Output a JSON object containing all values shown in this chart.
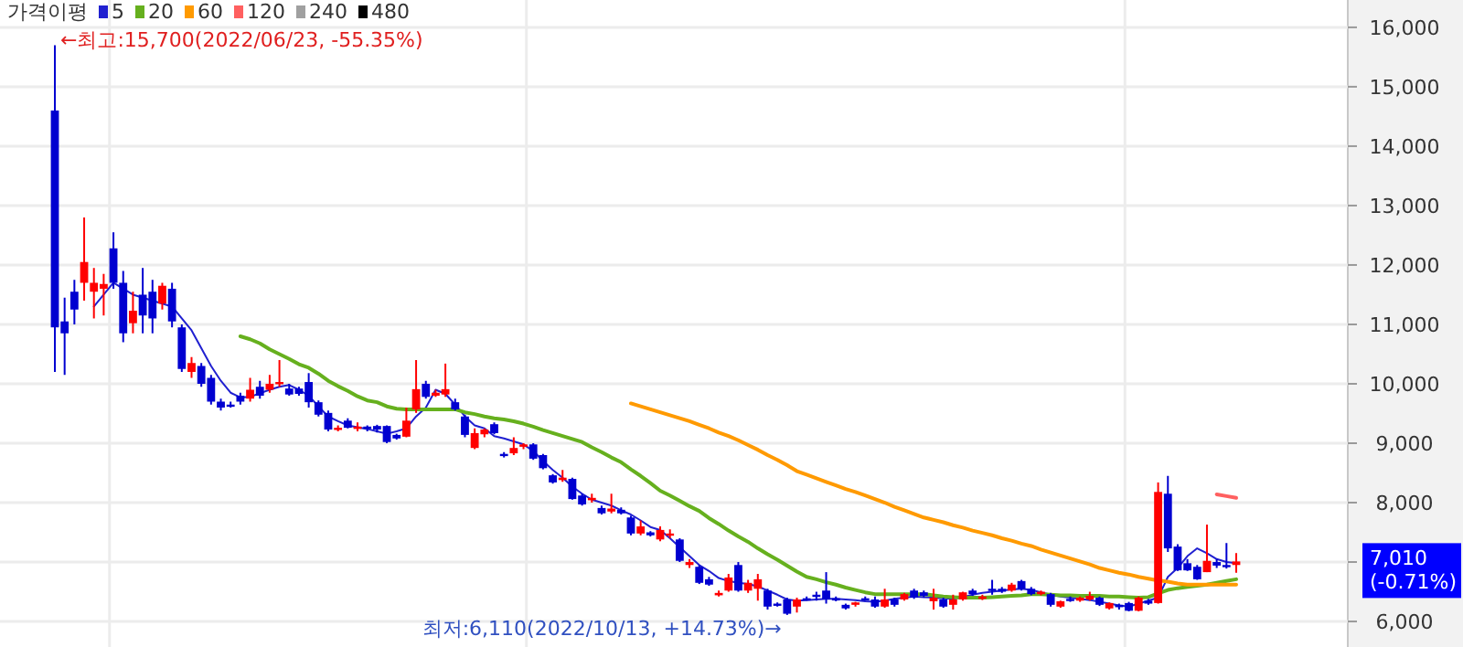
{
  "chart_data": {
    "type": "candlestick",
    "legend_title": "가격이평",
    "legend": "top left",
    "grid": "y",
    "categories": [
      null,
      null,
      null,
      null,
      null,
      null,
      null,
      null,
      null,
      null,
      null,
      null,
      null,
      null,
      null,
      null,
      null,
      null,
      null,
      null,
      null,
      null,
      null,
      null,
      null,
      null,
      null,
      null,
      null,
      null,
      null,
      null,
      null,
      null,
      null,
      null,
      null,
      null,
      null,
      null,
      null,
      null,
      null,
      null,
      null,
      null,
      null,
      null,
      null,
      null,
      null,
      null,
      null,
      null,
      null,
      null,
      null,
      null,
      null,
      null,
      null,
      null,
      null,
      null,
      null,
      null,
      null,
      null,
      null,
      null,
      null,
      null,
      null,
      null,
      null,
      null,
      null,
      null,
      null,
      null,
      null,
      null,
      null,
      null,
      null,
      null,
      null,
      null,
      null,
      null,
      null,
      null,
      null,
      null,
      null,
      null,
      null,
      null,
      null,
      null,
      null,
      null,
      null,
      null,
      null,
      null,
      null,
      null,
      null,
      null,
      null,
      null,
      null,
      null,
      null,
      null,
      null,
      null,
      null,
      null,
      null,
      null
    ],
    "ohlc": [
      [
        14600,
        15700,
        10200,
        10950
      ],
      [
        11050,
        11450,
        10150,
        10850
      ],
      [
        11550,
        11750,
        11000,
        11250
      ],
      [
        11700,
        12800,
        11400,
        12050
      ],
      [
        11550,
        11950,
        11100,
        11700
      ],
      [
        11600,
        11850,
        11150,
        11680
      ],
      [
        12280,
        12550,
        11600,
        11700
      ],
      [
        11700,
        11900,
        10700,
        10850
      ],
      [
        11020,
        11550,
        10850,
        11230
      ],
      [
        11500,
        11950,
        10850,
        11150
      ],
      [
        11550,
        11750,
        10850,
        11100
      ],
      [
        11350,
        11700,
        11250,
        11650
      ],
      [
        11600,
        11700,
        10950,
        11050
      ],
      [
        10950,
        11000,
        10200,
        10250
      ],
      [
        10200,
        10450,
        10100,
        10350
      ],
      [
        10300,
        10350,
        9950,
        10000
      ],
      [
        10100,
        10150,
        9650,
        9700
      ],
      [
        9700,
        9750,
        9550,
        9600
      ],
      [
        9650,
        9700,
        9600,
        9620
      ],
      [
        9800,
        9850,
        9650,
        9700
      ],
      [
        9750,
        10100,
        9700,
        9900
      ],
      [
        9950,
        10050,
        9750,
        9800
      ],
      [
        9900,
        10150,
        9850,
        10000
      ],
      [
        10000,
        10400,
        9950,
        10030
      ],
      [
        9920,
        10000,
        9800,
        9820
      ],
      [
        9920,
        9950,
        9800,
        9830
      ],
      [
        10030,
        10180,
        9600,
        9690
      ],
      [
        9690,
        9720,
        9450,
        9480
      ],
      [
        9510,
        9550,
        9200,
        9230
      ],
      [
        9230,
        9300,
        9200,
        9260
      ],
      [
        9380,
        9420,
        9250,
        9260
      ],
      [
        9240,
        9350,
        9200,
        9280
      ],
      [
        9280,
        9300,
        9200,
        9250
      ],
      [
        9290,
        9310,
        9180,
        9230
      ],
      [
        9290,
        9300,
        9000,
        9020
      ],
      [
        9140,
        9160,
        9060,
        9080
      ],
      [
        9110,
        9600,
        9100,
        9380
      ],
      [
        9570,
        10400,
        9510,
        9910
      ],
      [
        10000,
        10050,
        9750,
        9780
      ],
      [
        9800,
        9900,
        9780,
        9850
      ],
      [
        9820,
        10340,
        9780,
        9910
      ],
      [
        9690,
        9750,
        9550,
        9570
      ],
      [
        9450,
        9480,
        9100,
        9140
      ],
      [
        8920,
        9250,
        8900,
        9170
      ],
      [
        9150,
        9250,
        9100,
        9230
      ],
      [
        9320,
        9350,
        9150,
        9170
      ],
      [
        8820,
        8850,
        8760,
        8800
      ],
      [
        8830,
        9100,
        8800,
        8920
      ],
      [
        8940,
        9000,
        8900,
        8980
      ],
      [
        8980,
        9000,
        8720,
        8740
      ],
      [
        8800,
        8820,
        8560,
        8580
      ],
      [
        8460,
        8480,
        8320,
        8340
      ],
      [
        8380,
        8550,
        8350,
        8420
      ],
      [
        8400,
        8420,
        8050,
        8060
      ],
      [
        8120,
        8150,
        7950,
        7970
      ],
      [
        8040,
        8150,
        8000,
        8080
      ],
      [
        7910,
        7950,
        7800,
        7820
      ],
      [
        7850,
        8150,
        7820,
        7900
      ],
      [
        7880,
        7920,
        7800,
        7820
      ],
      [
        7750,
        7780,
        7450,
        7480
      ],
      [
        7480,
        7700,
        7450,
        7600
      ],
      [
        7500,
        7520,
        7430,
        7450
      ],
      [
        7380,
        7600,
        7350,
        7540
      ],
      [
        7450,
        7550,
        7400,
        7480
      ],
      [
        7380,
        7400,
        7000,
        7020
      ],
      [
        6950,
        7050,
        6900,
        7000
      ],
      [
        6920,
        6950,
        6630,
        6650
      ],
      [
        6710,
        6750,
        6600,
        6620
      ],
      [
        6440,
        6520,
        6420,
        6480
      ],
      [
        6520,
        6800,
        6500,
        6740
      ],
      [
        6950,
        7000,
        6500,
        6520
      ],
      [
        6520,
        6700,
        6480,
        6650
      ],
      [
        6550,
        6800,
        6350,
        6710
      ],
      [
        6520,
        6550,
        6200,
        6250
      ],
      [
        6300,
        6320,
        6250,
        6270
      ],
      [
        6370,
        6400,
        6110,
        6130
      ],
      [
        6250,
        6400,
        6150,
        6370
      ],
      [
        6390,
        6420,
        6350,
        6370
      ],
      [
        6450,
        6500,
        6350,
        6420
      ],
      [
        6520,
        6830,
        6300,
        6370
      ],
      [
        6390,
        6420,
        6340,
        6360
      ],
      [
        6280,
        6300,
        6200,
        6220
      ],
      [
        6280,
        6330,
        6250,
        6320
      ],
      [
        6390,
        6420,
        6350,
        6370
      ],
      [
        6370,
        6420,
        6230,
        6250
      ],
      [
        6250,
        6550,
        6230,
        6370
      ],
      [
        6370,
        6400,
        6250,
        6280
      ],
      [
        6370,
        6480,
        6350,
        6460
      ],
      [
        6520,
        6550,
        6380,
        6400
      ],
      [
        6490,
        6520,
        6400,
        6430
      ],
      [
        6340,
        6550,
        6200,
        6400
      ],
      [
        6370,
        6400,
        6230,
        6250
      ],
      [
        6280,
        6450,
        6200,
        6370
      ],
      [
        6370,
        6500,
        6350,
        6490
      ],
      [
        6520,
        6550,
        6430,
        6460
      ],
      [
        6380,
        6450,
        6360,
        6420
      ],
      [
        6550,
        6700,
        6450,
        6530
      ],
      [
        6550,
        6580,
        6480,
        6500
      ],
      [
        6520,
        6650,
        6500,
        6620
      ],
      [
        6680,
        6700,
        6520,
        6550
      ],
      [
        6550,
        6580,
        6440,
        6460
      ],
      [
        6460,
        6520,
        6440,
        6500
      ],
      [
        6460,
        6480,
        6250,
        6280
      ],
      [
        6250,
        6350,
        6230,
        6340
      ],
      [
        6380,
        6420,
        6330,
        6370
      ],
      [
        6350,
        6420,
        6330,
        6400
      ],
      [
        6370,
        6500,
        6350,
        6430
      ],
      [
        6400,
        6420,
        6260,
        6280
      ],
      [
        6220,
        6320,
        6200,
        6310
      ],
      [
        6280,
        6300,
        6200,
        6240
      ],
      [
        6310,
        6330,
        6170,
        6180
      ],
      [
        6180,
        6420,
        6170,
        6400
      ],
      [
        6350,
        6380,
        6280,
        6300
      ],
      [
        6310,
        8340,
        6300,
        8180
      ],
      [
        8150,
        8450,
        7170,
        7230
      ],
      [
        7260,
        7300,
        6850,
        6860
      ],
      [
        6980,
        7050,
        6850,
        6860
      ],
      [
        6920,
        6950,
        6700,
        6710
      ],
      [
        6830,
        7630,
        6830,
        7020
      ],
      [
        7000,
        7050,
        6900,
        6940
      ],
      [
        6950,
        7320,
        6890,
        6930
      ],
      [
        6950,
        7150,
        6820,
        7010
      ]
    ],
    "series": [
      {
        "name": "5",
        "type": "line",
        "color": "#2020d0",
        "values": [
          null,
          null,
          null,
          null,
          11300,
          11500,
          11700,
          11600,
          11500,
          11450,
          11400,
          11350,
          11300,
          11100,
          10900,
          10600,
          10300,
          10050,
          9850,
          9770,
          9780,
          9840,
          9900,
          9950,
          9980,
          9900,
          9800,
          9620,
          9450,
          9370,
          9300,
          9270,
          9240,
          9200,
          9160,
          9200,
          9250,
          9450,
          9600,
          9900,
          9830,
          9650,
          9450,
          9300,
          9250,
          9120,
          9080,
          9030,
          8980,
          8870,
          8700,
          8550,
          8420,
          8270,
          8150,
          8050,
          8000,
          7950,
          7870,
          7800,
          7700,
          7590,
          7540,
          7400,
          7250,
          7100,
          6950,
          6850,
          6730,
          6680,
          6650,
          6630,
          6590,
          6520,
          6450,
          6370,
          6350,
          6360,
          6370,
          6380,
          6380,
          6370,
          6360,
          6340,
          6330,
          6350,
          6380,
          6400,
          6420,
          6410,
          6400,
          6390,
          6380,
          6410,
          6450,
          6480,
          6500,
          6520,
          6540,
          6550,
          6530,
          6490,
          6450,
          6420,
          6400,
          6380,
          6360,
          6330,
          6300,
          6270,
          6250,
          6300,
          6350,
          6400,
          6750,
          6900,
          7100,
          7230,
          7150,
          7050,
          7000,
          6980
        ]
      },
      {
        "name": "20",
        "type": "line",
        "color": "#66b01e",
        "values": [
          null,
          null,
          null,
          null,
          null,
          null,
          null,
          null,
          null,
          null,
          null,
          null,
          null,
          null,
          null,
          null,
          null,
          null,
          null,
          10800,
          10750,
          10680,
          10580,
          10500,
          10420,
          10330,
          10270,
          10170,
          10050,
          9960,
          9880,
          9790,
          9720,
          9690,
          9620,
          9580,
          9570,
          9570,
          9570,
          9570,
          9570,
          9570,
          9520,
          9490,
          9450,
          9420,
          9400,
          9370,
          9330,
          9280,
          9220,
          9170,
          9120,
          9070,
          9020,
          8930,
          8850,
          8760,
          8680,
          8560,
          8450,
          8330,
          8200,
          8120,
          8030,
          7940,
          7860,
          7740,
          7640,
          7530,
          7430,
          7340,
          7230,
          7130,
          7040,
          6940,
          6840,
          6750,
          6710,
          6660,
          6620,
          6570,
          6530,
          6490,
          6460,
          6460,
          6460,
          6460,
          6460,
          6460,
          6440,
          6420,
          6410,
          6400,
          6400,
          6400,
          6410,
          6420,
          6430,
          6440,
          6460,
          6460,
          6450,
          6440,
          6440,
          6430,
          6430,
          6430,
          6420,
          6420,
          6410,
          6400,
          6410,
          6470,
          6530,
          6560,
          6580,
          6600,
          6620,
          6650,
          6680,
          6710
        ]
      },
      {
        "name": "60",
        "type": "line",
        "color": "#ff9a00",
        "values": [
          null,
          null,
          null,
          null,
          null,
          null,
          null,
          null,
          null,
          null,
          null,
          null,
          null,
          null,
          null,
          null,
          null,
          null,
          null,
          null,
          null,
          null,
          null,
          null,
          null,
          null,
          null,
          null,
          null,
          null,
          null,
          null,
          null,
          null,
          null,
          null,
          null,
          null,
          null,
          null,
          null,
          null,
          null,
          null,
          null,
          null,
          null,
          null,
          null,
          null,
          null,
          null,
          null,
          null,
          null,
          null,
          null,
          null,
          null,
          9670,
          9620,
          9570,
          9520,
          9470,
          9420,
          9370,
          9310,
          9250,
          9180,
          9120,
          9050,
          8970,
          8890,
          8800,
          8720,
          8630,
          8530,
          8470,
          8410,
          8350,
          8290,
          8230,
          8180,
          8120,
          8060,
          8000,
          7930,
          7870,
          7810,
          7750,
          7710,
          7670,
          7620,
          7580,
          7530,
          7490,
          7450,
          7400,
          7360,
          7310,
          7270,
          7210,
          7160,
          7110,
          7060,
          7010,
          6960,
          6900,
          6860,
          6820,
          6790,
          6750,
          6720,
          6690,
          6670,
          6640,
          6620,
          6620,
          6620,
          6620,
          6620,
          6620
        ]
      },
      {
        "name": "120",
        "type": "line",
        "color": "#ff6060",
        "values": [
          null,
          null,
          null,
          null,
          null,
          null,
          null,
          null,
          null,
          null,
          null,
          null,
          null,
          null,
          null,
          null,
          null,
          null,
          null,
          null,
          null,
          null,
          null,
          null,
          null,
          null,
          null,
          null,
          null,
          null,
          null,
          null,
          null,
          null,
          null,
          null,
          null,
          null,
          null,
          null,
          null,
          null,
          null,
          null,
          null,
          null,
          null,
          null,
          null,
          null,
          null,
          null,
          null,
          null,
          null,
          null,
          null,
          null,
          null,
          null,
          null,
          null,
          null,
          null,
          null,
          null,
          null,
          null,
          null,
          null,
          null,
          null,
          null,
          null,
          null,
          null,
          null,
          null,
          null,
          null,
          null,
          null,
          null,
          null,
          null,
          null,
          null,
          null,
          null,
          null,
          null,
          null,
          null,
          null,
          null,
          null,
          null,
          null,
          null,
          null,
          null,
          null,
          null,
          null,
          null,
          null,
          null,
          null,
          null,
          null,
          null,
          null,
          null,
          null,
          null,
          null,
          null,
          null,
          null,
          8140,
          8110,
          8080
        ]
      },
      {
        "name": "240",
        "type": "line",
        "color": "#a0a0a0",
        "values": [
          null,
          null,
          null,
          null,
          null,
          null,
          null,
          null,
          null,
          null,
          null,
          null,
          null,
          null,
          null,
          null,
          null,
          null,
          null,
          null,
          null,
          null,
          null,
          null,
          null,
          null,
          null,
          null,
          null,
          null,
          null,
          null,
          null,
          null,
          null,
          null,
          null,
          null,
          null,
          null,
          null,
          null,
          null,
          null,
          null,
          null,
          null,
          null,
          null,
          null,
          null,
          null,
          null,
          null,
          null,
          null,
          null,
          null,
          null,
          null,
          null,
          null,
          null,
          null,
          null,
          null,
          null,
          null,
          null,
          null,
          null,
          null,
          null,
          null,
          null,
          null,
          null,
          null,
          null,
          null,
          null,
          null,
          null,
          null,
          null,
          null,
          null,
          null,
          null,
          null,
          null,
          null,
          null,
          null,
          null,
          null,
          null,
          null,
          null,
          null,
          null,
          null,
          null,
          null,
          null,
          null,
          null,
          null,
          null,
          null,
          null,
          null,
          null,
          null,
          null,
          null,
          null,
          null,
          null,
          null,
          null,
          null
        ]
      },
      {
        "name": "480",
        "type": "line",
        "color": "#000000",
        "values": [
          null,
          null,
          null,
          null,
          null,
          null,
          null,
          null,
          null,
          null,
          null,
          null,
          null,
          null,
          null,
          null,
          null,
          null,
          null,
          null,
          null,
          null,
          null,
          null,
          null,
          null,
          null,
          null,
          null,
          null,
          null,
          null,
          null,
          null,
          null,
          null,
          null,
          null,
          null,
          null,
          null,
          null,
          null,
          null,
          null,
          null,
          null,
          null,
          null,
          null,
          null,
          null,
          null,
          null,
          null,
          null,
          null,
          null,
          null,
          null,
          null,
          null,
          null,
          null,
          null,
          null,
          null,
          null,
          null,
          null,
          null,
          null,
          null,
          null,
          null,
          null,
          null,
          null,
          null,
          null,
          null,
          null,
          null,
          null,
          null,
          null,
          null,
          null,
          null,
          null,
          null,
          null,
          null,
          null,
          null,
          null,
          null,
          null,
          null,
          null,
          null,
          null,
          null,
          null,
          null,
          null,
          null,
          null,
          null,
          null,
          null,
          null,
          null,
          null,
          null,
          null,
          null,
          null,
          null,
          null,
          null,
          null
        ]
      }
    ],
    "ylim": [
      5570,
      16460
    ],
    "yticks": [
      {
        "value": 6000,
        "label": "6,000"
      },
      {
        "value": 7000,
        "label": null
      },
      {
        "value": 8000,
        "label": "8,000"
      },
      {
        "value": 9000,
        "label": "9,000"
      },
      {
        "value": 10000,
        "label": "10,000"
      },
      {
        "value": 11000,
        "label": "11,000"
      },
      {
        "value": 12000,
        "label": "12,000"
      },
      {
        "value": 13000,
        "label": "13,000"
      },
      {
        "value": 14000,
        "label": "14,000"
      },
      {
        "value": 15000,
        "label": "15,000"
      },
      {
        "value": 16000,
        "label": "16,000"
      }
    ],
    "annotations": [
      "←최고:15,700(2022/06/23, -55.35%)",
      "최저:6,110(2022/10/13, +14.73%)→",
      "7,010\n(-0.71%)"
    ]
  }
}
